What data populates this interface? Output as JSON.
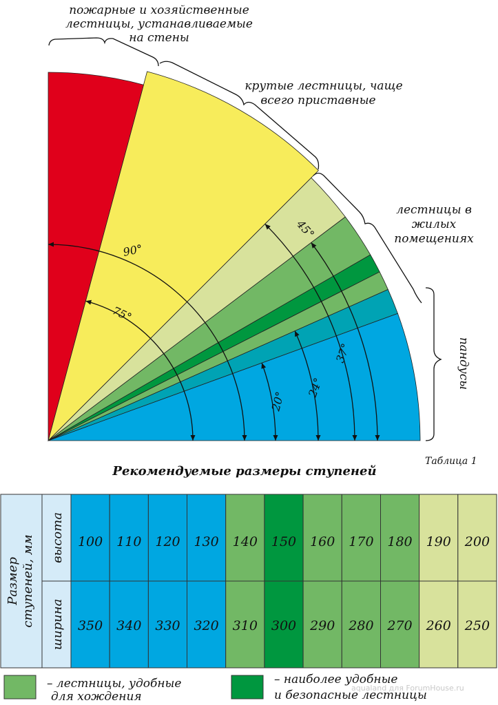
{
  "diagram": {
    "labels": {
      "fire_ladders": [
        "пожарные и хозяйственные",
        "лестницы, устанавливаемые",
        "на стены"
      ],
      "steep_stairs": [
        "крутые лестницы, чаще",
        "всего приставные"
      ],
      "residential_stairs": [
        "лестницы в",
        "жилых",
        "помещениях"
      ],
      "ramps": "пандусы"
    },
    "angles": {
      "a90": "90°",
      "a75": "75°",
      "a45": "45°",
      "a37": "37°",
      "a24": "24°",
      "a20": "20°"
    },
    "colors": {
      "red": "#e0001b",
      "yellow": "#f7ec5b",
      "pale_green": "#d8e29c",
      "green": "#72b865",
      "dark_green": "#00973f",
      "teal": "#00a3b4",
      "blue": "#00a7e1"
    }
  },
  "table_note": "Таблица 1",
  "table_title": "Рекомендуемые размеры ступеней",
  "table": {
    "row_group_label": [
      "Размер",
      "ступеней, мм"
    ],
    "row_labels": {
      "height": "высота",
      "width": "ширина"
    },
    "columns": [
      {
        "height": "100",
        "width": "350",
        "zone": "blue"
      },
      {
        "height": "110",
        "width": "340",
        "zone": "blue"
      },
      {
        "height": "120",
        "width": "330",
        "zone": "blue"
      },
      {
        "height": "130",
        "width": "320",
        "zone": "blue"
      },
      {
        "height": "140",
        "width": "310",
        "zone": "green"
      },
      {
        "height": "150",
        "width": "300",
        "zone": "dark_green"
      },
      {
        "height": "160",
        "width": "290",
        "zone": "green"
      },
      {
        "height": "170",
        "width": "280",
        "zone": "green"
      },
      {
        "height": "180",
        "width": "270",
        "zone": "green"
      },
      {
        "height": "190",
        "width": "260",
        "zone": "pale_green"
      },
      {
        "height": "200",
        "width": "250",
        "zone": "pale_green"
      }
    ]
  },
  "legend": {
    "comfortable": [
      "– лестницы, удобные",
      "для хождения"
    ],
    "most_comfortable": [
      "– наиболее удобные",
      "и безопасные лестницы"
    ]
  },
  "watermark": "aqualand для ForumHouse.ru"
}
